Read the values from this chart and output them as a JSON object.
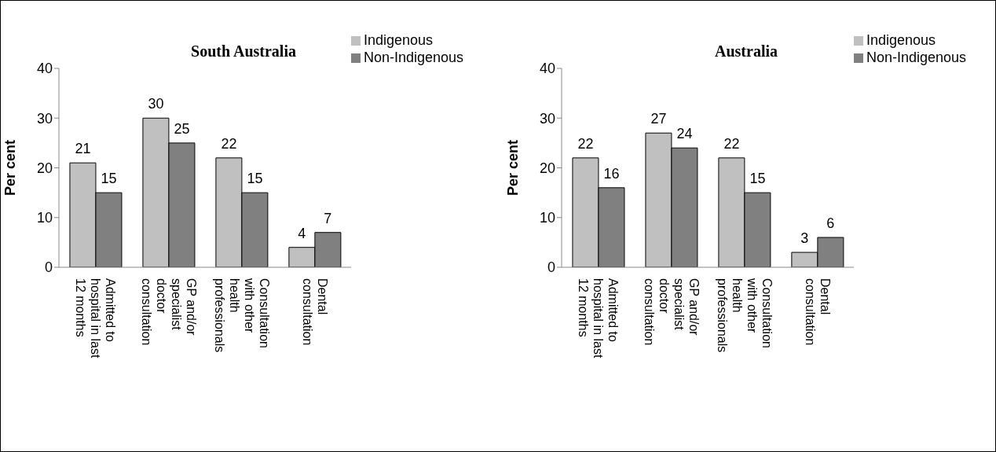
{
  "chart_data": [
    {
      "type": "bar",
      "title": "South Australia",
      "ylabel": "Per cent",
      "categories": [
        "Admitted to hospital in last 12 months",
        "GP and/or specialist doctor consultation",
        "Consultation with other health professionals",
        "Dental consultation"
      ],
      "series": [
        {
          "name": "Indigenous",
          "color": "#c0c0c0",
          "values": [
            21,
            30,
            22,
            4
          ]
        },
        {
          "name": "Non-Indigenous",
          "color": "#808080",
          "values": [
            15,
            25,
            15,
            7
          ]
        }
      ],
      "ylim": [
        0,
        40
      ],
      "yticks": [
        0,
        10,
        20,
        30,
        40
      ],
      "grid": false,
      "legend": "top right",
      "data_labels": true
    },
    {
      "type": "bar",
      "title": "Australia",
      "ylabel": "Per cent",
      "categories": [
        "Admitted to hospital in last 12 months",
        "GP and/or specialist doctor consultation",
        "Consultation with other health professionals",
        "Dental consultation"
      ],
      "series": [
        {
          "name": "Indigenous",
          "color": "#c0c0c0",
          "values": [
            22,
            27,
            22,
            3
          ]
        },
        {
          "name": "Non-Indigenous",
          "color": "#808080",
          "values": [
            16,
            24,
            15,
            6
          ]
        }
      ],
      "ylim": [
        0,
        40
      ],
      "yticks": [
        0,
        10,
        20,
        30,
        40
      ],
      "grid": false,
      "legend": "top right",
      "data_labels": true
    }
  ]
}
